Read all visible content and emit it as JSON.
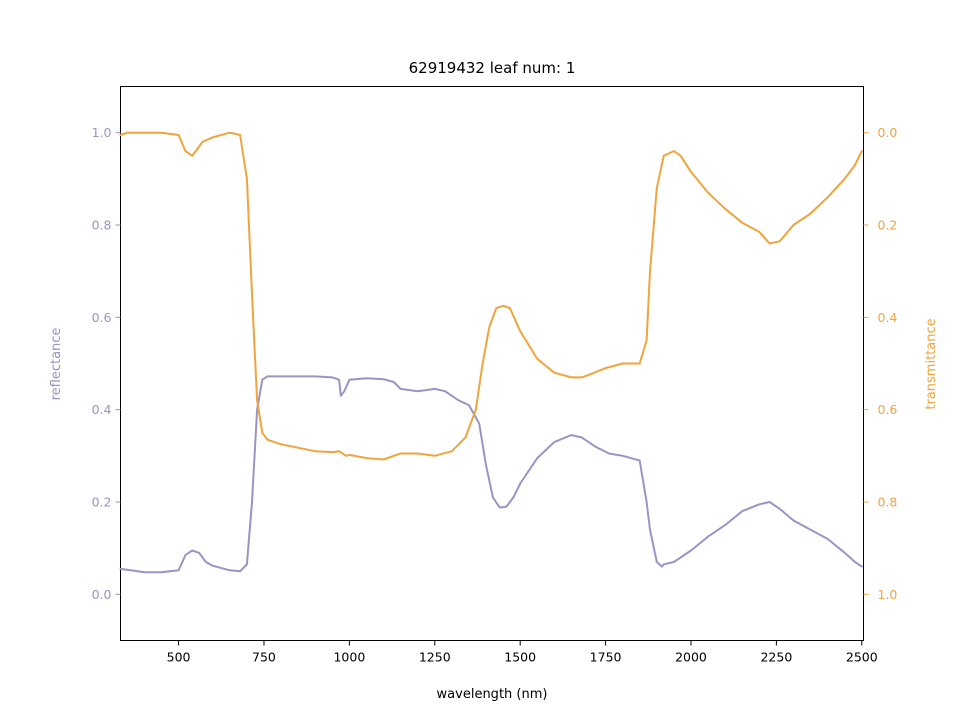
{
  "chart_data": {
    "type": "line",
    "title": "62919432 leaf num: 1",
    "xlabel": "wavelength (nm)",
    "ylabel_left": "reflectance",
    "ylabel_right": "transmittance",
    "xlim": [
      330,
      2505
    ],
    "ylim_left": [
      -0.1,
      1.1
    ],
    "ylim_right": [
      1.1,
      -0.1
    ],
    "right_axis_inverted": true,
    "grid": false,
    "x_ticks": [
      500,
      750,
      1000,
      1250,
      1500,
      1750,
      2000,
      2250,
      2500
    ],
    "y_left_ticks": [
      "0.0",
      "0.2",
      "0.4",
      "0.6",
      "0.8",
      "1.0"
    ],
    "y_right_ticks": [
      "0.0",
      "0.2",
      "0.4",
      "0.6",
      "0.8",
      "1.0"
    ],
    "colors": {
      "reflectance": "#9a94c5",
      "transmittance": "#efa43e"
    },
    "series": [
      {
        "name": "reflectance",
        "axis": "left",
        "x": [
          330,
          360,
          400,
          450,
          500,
          520,
          540,
          560,
          580,
          600,
          650,
          680,
          700,
          715,
          730,
          745,
          760,
          800,
          900,
          950,
          970,
          975,
          985,
          1000,
          1050,
          1100,
          1130,
          1150,
          1200,
          1250,
          1280,
          1320,
          1350,
          1380,
          1400,
          1420,
          1440,
          1460,
          1480,
          1500,
          1550,
          1600,
          1650,
          1680,
          1720,
          1760,
          1800,
          1850,
          1870,
          1880,
          1900,
          1915,
          1920,
          1950,
          2000,
          2050,
          2100,
          2150,
          2200,
          2230,
          2260,
          2300,
          2350,
          2400,
          2450,
          2480,
          2500
        ],
        "y": [
          0.055,
          0.052,
          0.048,
          0.048,
          0.052,
          0.085,
          0.095,
          0.09,
          0.07,
          0.062,
          0.052,
          0.05,
          0.065,
          0.2,
          0.4,
          0.465,
          0.472,
          0.472,
          0.472,
          0.47,
          0.465,
          0.43,
          0.44,
          0.465,
          0.468,
          0.466,
          0.46,
          0.445,
          0.44,
          0.445,
          0.44,
          0.42,
          0.41,
          0.37,
          0.28,
          0.21,
          0.188,
          0.19,
          0.21,
          0.24,
          0.295,
          0.33,
          0.345,
          0.34,
          0.32,
          0.305,
          0.3,
          0.29,
          0.2,
          0.14,
          0.07,
          0.06,
          0.065,
          0.07,
          0.095,
          0.125,
          0.15,
          0.18,
          0.195,
          0.2,
          0.185,
          0.16,
          0.14,
          0.12,
          0.09,
          0.07,
          0.06
        ]
      },
      {
        "name": "transmittance",
        "axis": "right",
        "x": [
          330,
          350,
          400,
          450,
          500,
          520,
          540,
          550,
          570,
          600,
          650,
          680,
          700,
          715,
          730,
          745,
          760,
          800,
          900,
          950,
          970,
          990,
          1000,
          1050,
          1100,
          1150,
          1200,
          1250,
          1300,
          1340,
          1370,
          1390,
          1410,
          1430,
          1450,
          1470,
          1500,
          1550,
          1600,
          1650,
          1680,
          1700,
          1750,
          1800,
          1850,
          1870,
          1880,
          1900,
          1920,
          1950,
          1970,
          2000,
          2050,
          2100,
          2150,
          2200,
          2230,
          2260,
          2300,
          2350,
          2400,
          2450,
          2480,
          2500
        ],
        "y": [
          0.005,
          0.0,
          0.0,
          0.0,
          0.005,
          0.04,
          0.05,
          0.04,
          0.02,
          0.01,
          0.0,
          0.005,
          0.1,
          0.35,
          0.58,
          0.65,
          0.665,
          0.675,
          0.69,
          0.692,
          0.69,
          0.7,
          0.698,
          0.705,
          0.708,
          0.695,
          0.695,
          0.7,
          0.69,
          0.66,
          0.6,
          0.5,
          0.42,
          0.38,
          0.375,
          0.38,
          0.43,
          0.49,
          0.52,
          0.53,
          0.53,
          0.525,
          0.51,
          0.5,
          0.5,
          0.45,
          0.3,
          0.12,
          0.05,
          0.04,
          0.05,
          0.085,
          0.13,
          0.165,
          0.195,
          0.215,
          0.24,
          0.235,
          0.2,
          0.175,
          0.14,
          0.1,
          0.07,
          0.04
        ]
      }
    ]
  }
}
